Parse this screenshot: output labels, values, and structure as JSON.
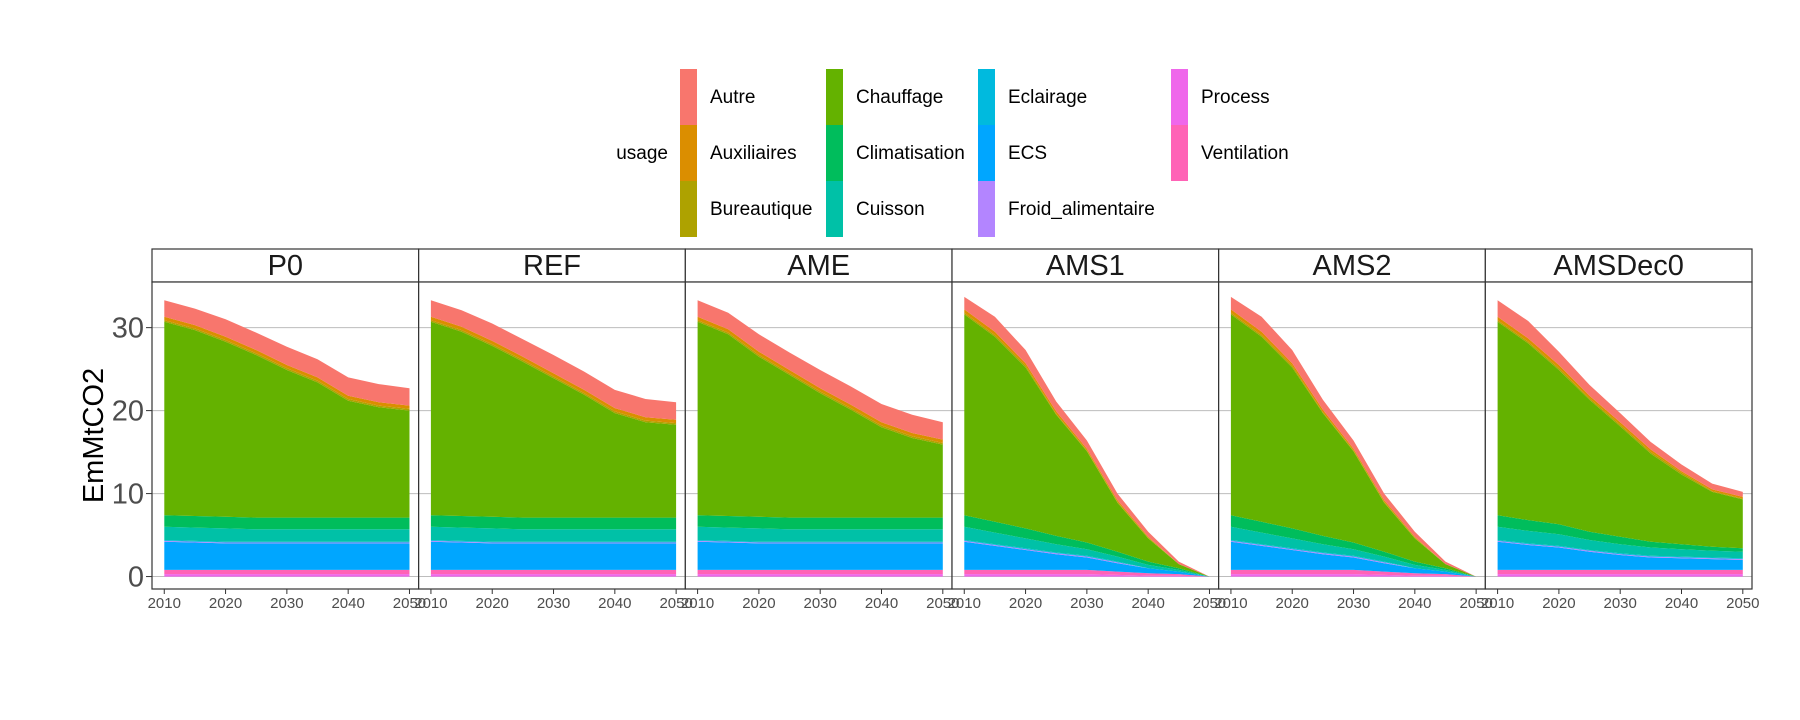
{
  "chart_data": {
    "type": "area",
    "stacked": true,
    "faceted": true,
    "ylabel": "EmMtCO2",
    "xlabel": "",
    "x_ticks": [
      2010,
      2020,
      2030,
      2040,
      2050
    ],
    "y_ticks": [
      0,
      10,
      20,
      30
    ],
    "ylim": [
      -1.5,
      35.5
    ],
    "xlim": [
      2008,
      2051.5
    ],
    "grid": true,
    "legend": {
      "title": "usage",
      "position": "top",
      "columns": [
        [
          "Autre",
          "Auxiliaires",
          "Bureautique"
        ],
        [
          "Chauffage",
          "Climatisation",
          "Cuisson"
        ],
        [
          "Eclairage",
          "ECS",
          "Froid_alimentaire"
        ],
        [
          "Process",
          "Ventilation"
        ]
      ]
    },
    "stack_order": [
      "Process",
      "Ventilation",
      "ECS",
      "Froid_alimentaire",
      "Eclairage",
      "Cuisson",
      "Climatisation",
      "Chauffage",
      "Bureautique",
      "Auxiliaires",
      "Autre"
    ],
    "colors": {
      "Autre": "#F8766D",
      "Auxiliaires": "#DB8E00",
      "Bureautique": "#AEA200",
      "Chauffage": "#64B200",
      "Climatisation": "#00BD5C",
      "Cuisson": "#00C1A7",
      "Eclairage": "#00BADE",
      "ECS": "#00A6FF",
      "Froid_alimentaire": "#B385FF",
      "Process": "#EF67EB",
      "Ventilation": "#FF63B6"
    },
    "x": [
      2010,
      2015,
      2020,
      2025,
      2030,
      2035,
      2040,
      2045,
      2050
    ],
    "panels": [
      {
        "title": "P0",
        "series": [
          {
            "name": "Process",
            "values": [
              0.3,
              0.3,
              0.3,
              0.3,
              0.3,
              0.3,
              0.3,
              0.3,
              0.3
            ]
          },
          {
            "name": "Ventilation",
            "values": [
              0.5,
              0.5,
              0.5,
              0.5,
              0.5,
              0.5,
              0.5,
              0.5,
              0.5
            ]
          },
          {
            "name": "ECS",
            "values": [
              3.4,
              3.3,
              3.2,
              3.2,
              3.2,
              3.2,
              3.2,
              3.2,
              3.2
            ]
          },
          {
            "name": "Froid_alimentaire",
            "values": [
              0.1,
              0.1,
              0.1,
              0.1,
              0.1,
              0.1,
              0.1,
              0.1,
              0.1
            ]
          },
          {
            "name": "Eclairage",
            "values": [
              0.1,
              0.1,
              0.1,
              0.1,
              0.1,
              0.1,
              0.1,
              0.1,
              0.1
            ]
          },
          {
            "name": "Cuisson",
            "values": [
              1.6,
              1.6,
              1.6,
              1.5,
              1.5,
              1.5,
              1.5,
              1.5,
              1.5
            ]
          },
          {
            "name": "Climatisation",
            "values": [
              1.4,
              1.4,
              1.4,
              1.4,
              1.4,
              1.4,
              1.4,
              1.4,
              1.4
            ]
          },
          {
            "name": "Chauffage",
            "values": [
              23.3,
              22.4,
              21.1,
              19.6,
              17.8,
              16.3,
              14.1,
              13.3,
              12.9
            ]
          },
          {
            "name": "Bureautique",
            "values": [
              0.2,
              0.2,
              0.2,
              0.2,
              0.2,
              0.2,
              0.2,
              0.2,
              0.2
            ]
          },
          {
            "name": "Auxiliaires",
            "values": [
              0.4,
              0.4,
              0.4,
              0.4,
              0.4,
              0.4,
              0.4,
              0.4,
              0.4
            ]
          },
          {
            "name": "Autre",
            "values": [
              2.0,
              2.0,
              2.1,
              2.1,
              2.2,
              2.2,
              2.2,
              2.2,
              2.1
            ]
          }
        ]
      },
      {
        "title": "REF",
        "series": [
          {
            "name": "Process",
            "values": [
              0.3,
              0.3,
              0.3,
              0.3,
              0.3,
              0.3,
              0.3,
              0.3,
              0.3
            ]
          },
          {
            "name": "Ventilation",
            "values": [
              0.5,
              0.5,
              0.5,
              0.5,
              0.5,
              0.5,
              0.5,
              0.5,
              0.5
            ]
          },
          {
            "name": "ECS",
            "values": [
              3.4,
              3.3,
              3.2,
              3.2,
              3.2,
              3.2,
              3.2,
              3.2,
              3.2
            ]
          },
          {
            "name": "Froid_alimentaire",
            "values": [
              0.1,
              0.1,
              0.1,
              0.1,
              0.1,
              0.1,
              0.1,
              0.1,
              0.1
            ]
          },
          {
            "name": "Eclairage",
            "values": [
              0.1,
              0.1,
              0.1,
              0.1,
              0.1,
              0.1,
              0.1,
              0.1,
              0.1
            ]
          },
          {
            "name": "Cuisson",
            "values": [
              1.6,
              1.6,
              1.6,
              1.5,
              1.5,
              1.5,
              1.5,
              1.5,
              1.5
            ]
          },
          {
            "name": "Climatisation",
            "values": [
              1.4,
              1.4,
              1.4,
              1.4,
              1.4,
              1.4,
              1.4,
              1.4,
              1.4
            ]
          },
          {
            "name": "Chauffage",
            "values": [
              23.3,
              22.2,
              20.6,
              18.8,
              16.8,
              14.8,
              12.6,
              11.5,
              11.2
            ]
          },
          {
            "name": "Bureautique",
            "values": [
              0.2,
              0.2,
              0.2,
              0.2,
              0.2,
              0.2,
              0.2,
              0.2,
              0.2
            ]
          },
          {
            "name": "Auxiliaires",
            "values": [
              0.4,
              0.4,
              0.4,
              0.4,
              0.4,
              0.4,
              0.4,
              0.4,
              0.4
            ]
          },
          {
            "name": "Autre",
            "values": [
              2.0,
              2.0,
              2.1,
              2.1,
              2.2,
              2.2,
              2.2,
              2.2,
              2.1
            ]
          }
        ]
      },
      {
        "title": "AME",
        "series": [
          {
            "name": "Process",
            "values": [
              0.3,
              0.3,
              0.3,
              0.3,
              0.3,
              0.3,
              0.3,
              0.3,
              0.3
            ]
          },
          {
            "name": "Ventilation",
            "values": [
              0.5,
              0.5,
              0.5,
              0.5,
              0.5,
              0.5,
              0.5,
              0.5,
              0.5
            ]
          },
          {
            "name": "ECS",
            "values": [
              3.4,
              3.3,
              3.2,
              3.2,
              3.2,
              3.2,
              3.2,
              3.2,
              3.2
            ]
          },
          {
            "name": "Froid_alimentaire",
            "values": [
              0.1,
              0.1,
              0.1,
              0.1,
              0.1,
              0.1,
              0.1,
              0.1,
              0.1
            ]
          },
          {
            "name": "Eclairage",
            "values": [
              0.1,
              0.1,
              0.1,
              0.1,
              0.1,
              0.1,
              0.1,
              0.1,
              0.1
            ]
          },
          {
            "name": "Cuisson",
            "values": [
              1.6,
              1.6,
              1.6,
              1.5,
              1.5,
              1.5,
              1.5,
              1.5,
              1.5
            ]
          },
          {
            "name": "Climatisation",
            "values": [
              1.4,
              1.4,
              1.4,
              1.4,
              1.4,
              1.4,
              1.4,
              1.4,
              1.4
            ]
          },
          {
            "name": "Chauffage",
            "values": [
              23.3,
              21.9,
              19.3,
              17.2,
              15.0,
              13.0,
              10.9,
              9.6,
              8.8
            ]
          },
          {
            "name": "Bureautique",
            "values": [
              0.2,
              0.2,
              0.2,
              0.2,
              0.2,
              0.2,
              0.2,
              0.2,
              0.2
            ]
          },
          {
            "name": "Auxiliaires",
            "values": [
              0.4,
              0.4,
              0.4,
              0.4,
              0.4,
              0.4,
              0.4,
              0.4,
              0.4
            ]
          },
          {
            "name": "Autre",
            "values": [
              2.0,
              2.0,
              2.1,
              2.1,
              2.2,
              2.2,
              2.2,
              2.2,
              2.1
            ]
          }
        ]
      },
      {
        "title": "AMS1",
        "series": [
          {
            "name": "Process",
            "values": [
              0.3,
              0.3,
              0.3,
              0.3,
              0.3,
              0.2,
              0.1,
              0.1,
              0.0
            ]
          },
          {
            "name": "Ventilation",
            "values": [
              0.5,
              0.5,
              0.5,
              0.5,
              0.5,
              0.4,
              0.3,
              0.2,
              0.0
            ]
          },
          {
            "name": "ECS",
            "values": [
              3.4,
              2.9,
              2.4,
              1.9,
              1.5,
              1.0,
              0.6,
              0.3,
              0.0
            ]
          },
          {
            "name": "Froid_alimentaire",
            "values": [
              0.1,
              0.1,
              0.1,
              0.1,
              0.1,
              0.1,
              0.0,
              0.0,
              0.0
            ]
          },
          {
            "name": "Eclairage",
            "values": [
              0.1,
              0.1,
              0.1,
              0.1,
              0.1,
              0.1,
              0.0,
              0.0,
              0.0
            ]
          },
          {
            "name": "Cuisson",
            "values": [
              1.6,
              1.4,
              1.2,
              1.0,
              0.8,
              0.6,
              0.4,
              0.2,
              0.0
            ]
          },
          {
            "name": "Climatisation",
            "values": [
              1.4,
              1.3,
              1.2,
              1.0,
              0.8,
              0.6,
              0.4,
              0.2,
              0.0
            ]
          },
          {
            "name": "Chauffage",
            "values": [
              24.2,
              22.3,
              19.4,
              14.6,
              11.0,
              5.9,
              2.8,
              0.5,
              0.0
            ]
          },
          {
            "name": "Bureautique",
            "values": [
              0.2,
              0.2,
              0.2,
              0.1,
              0.1,
              0.1,
              0.1,
              0.0,
              0.0
            ]
          },
          {
            "name": "Auxiliaires",
            "values": [
              0.4,
              0.4,
              0.3,
              0.3,
              0.2,
              0.2,
              0.1,
              0.0,
              0.0
            ]
          },
          {
            "name": "Autre",
            "values": [
              1.5,
              1.8,
              1.6,
              1.2,
              1.0,
              0.8,
              0.6,
              0.3,
              0.0
            ]
          }
        ]
      },
      {
        "title": "AMS2",
        "series": [
          {
            "name": "Process",
            "values": [
              0.3,
              0.3,
              0.3,
              0.3,
              0.3,
              0.2,
              0.1,
              0.1,
              0.0
            ]
          },
          {
            "name": "Ventilation",
            "values": [
              0.5,
              0.5,
              0.5,
              0.5,
              0.5,
              0.4,
              0.3,
              0.2,
              0.0
            ]
          },
          {
            "name": "ECS",
            "values": [
              3.4,
              2.9,
              2.4,
              1.9,
              1.5,
              1.0,
              0.6,
              0.3,
              0.0
            ]
          },
          {
            "name": "Froid_alimentaire",
            "values": [
              0.1,
              0.1,
              0.1,
              0.1,
              0.1,
              0.1,
              0.0,
              0.0,
              0.0
            ]
          },
          {
            "name": "Eclairage",
            "values": [
              0.1,
              0.1,
              0.1,
              0.1,
              0.1,
              0.1,
              0.0,
              0.0,
              0.0
            ]
          },
          {
            "name": "Cuisson",
            "values": [
              1.6,
              1.4,
              1.2,
              1.0,
              0.8,
              0.6,
              0.4,
              0.2,
              0.0
            ]
          },
          {
            "name": "Climatisation",
            "values": [
              1.4,
              1.3,
              1.2,
              1.0,
              0.8,
              0.6,
              0.4,
              0.2,
              0.0
            ]
          },
          {
            "name": "Chauffage",
            "values": [
              24.2,
              22.3,
              19.4,
              14.8,
              11.0,
              5.9,
              2.8,
              0.5,
              0.0
            ]
          },
          {
            "name": "Bureautique",
            "values": [
              0.2,
              0.2,
              0.2,
              0.1,
              0.1,
              0.1,
              0.1,
              0.0,
              0.0
            ]
          },
          {
            "name": "Auxiliaires",
            "values": [
              0.4,
              0.4,
              0.3,
              0.3,
              0.2,
              0.2,
              0.1,
              0.0,
              0.0
            ]
          },
          {
            "name": "Autre",
            "values": [
              1.5,
              1.8,
              1.6,
              1.2,
              1.0,
              0.8,
              0.6,
              0.3,
              0.0
            ]
          }
        ]
      },
      {
        "title": "AMSDec0",
        "series": [
          {
            "name": "Process",
            "values": [
              0.3,
              0.3,
              0.3,
              0.3,
              0.3,
              0.3,
              0.3,
              0.3,
              0.3
            ]
          },
          {
            "name": "Ventilation",
            "values": [
              0.5,
              0.5,
              0.5,
              0.5,
              0.5,
              0.5,
              0.5,
              0.5,
              0.5
            ]
          },
          {
            "name": "ECS",
            "values": [
              3.4,
              3.0,
              2.7,
              2.2,
              1.8,
              1.5,
              1.4,
              1.3,
              1.2
            ]
          },
          {
            "name": "Froid_alimentaire",
            "values": [
              0.1,
              0.1,
              0.1,
              0.1,
              0.1,
              0.1,
              0.1,
              0.1,
              0.1
            ]
          },
          {
            "name": "Eclairage",
            "values": [
              0.1,
              0.1,
              0.1,
              0.1,
              0.1,
              0.1,
              0.1,
              0.1,
              0.1
            ]
          },
          {
            "name": "Cuisson",
            "values": [
              1.6,
              1.5,
              1.4,
              1.2,
              1.1,
              1.0,
              0.9,
              0.8,
              0.8
            ]
          },
          {
            "name": "Climatisation",
            "values": [
              1.4,
              1.3,
              1.2,
              1.0,
              0.9,
              0.7,
              0.6,
              0.5,
              0.4
            ]
          },
          {
            "name": "Chauffage",
            "values": [
              23.3,
              21.3,
              18.6,
              15.9,
              13.3,
              10.6,
              8.4,
              6.6,
              5.9
            ]
          },
          {
            "name": "Bureautique",
            "values": [
              0.2,
              0.2,
              0.2,
              0.2,
              0.2,
              0.2,
              0.2,
              0.1,
              0.1
            ]
          },
          {
            "name": "Auxiliaires",
            "values": [
              0.4,
              0.4,
              0.4,
              0.3,
              0.3,
              0.3,
              0.2,
              0.2,
              0.2
            ]
          },
          {
            "name": "Autre",
            "values": [
              2.0,
              2.1,
              1.6,
              1.3,
              1.1,
              0.9,
              0.8,
              0.7,
              0.6
            ]
          }
        ]
      }
    ]
  }
}
